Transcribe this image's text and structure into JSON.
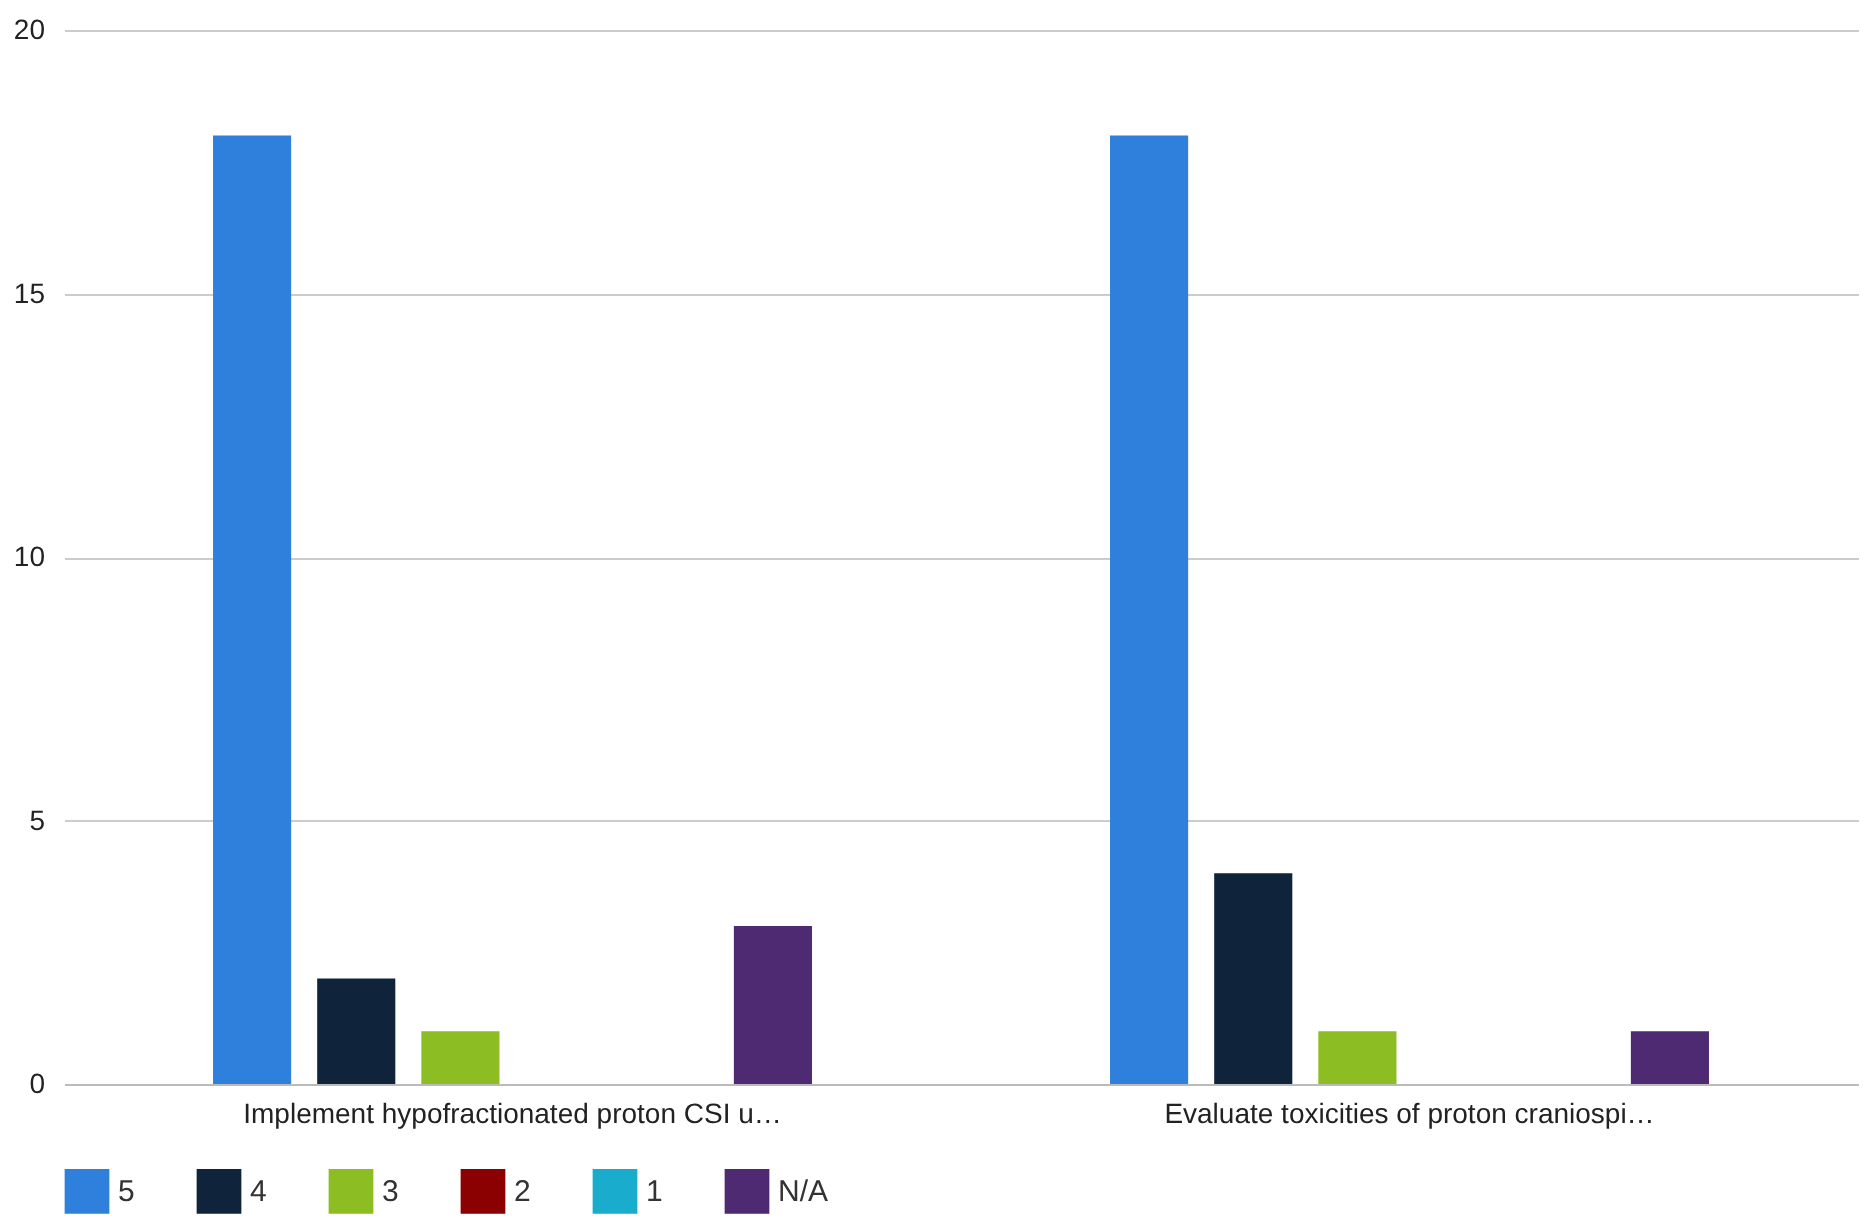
{
  "chart_data": {
    "type": "bar",
    "categories": [
      "Implement hypofractionated proton CSI u…",
      "Evaluate toxicities of proton craniospi…"
    ],
    "series": [
      {
        "name": "5",
        "color": "#2f80dc",
        "values": [
          18,
          18
        ]
      },
      {
        "name": "4",
        "color": "#0f243b",
        "values": [
          2,
          4
        ]
      },
      {
        "name": "3",
        "color": "#8cbd23",
        "values": [
          1,
          1
        ]
      },
      {
        "name": "2",
        "color": "#8b0000",
        "values": [
          0,
          0
        ]
      },
      {
        "name": "1",
        "color": "#1aaccc",
        "values": [
          0,
          0
        ]
      },
      {
        "name": "N/A",
        "color": "#4e2a72",
        "values": [
          3,
          1
        ]
      }
    ],
    "ylim": [
      0,
      20
    ],
    "yticks": [
      0,
      5,
      10,
      15,
      20
    ],
    "grid": "y",
    "legend": "bottom"
  }
}
